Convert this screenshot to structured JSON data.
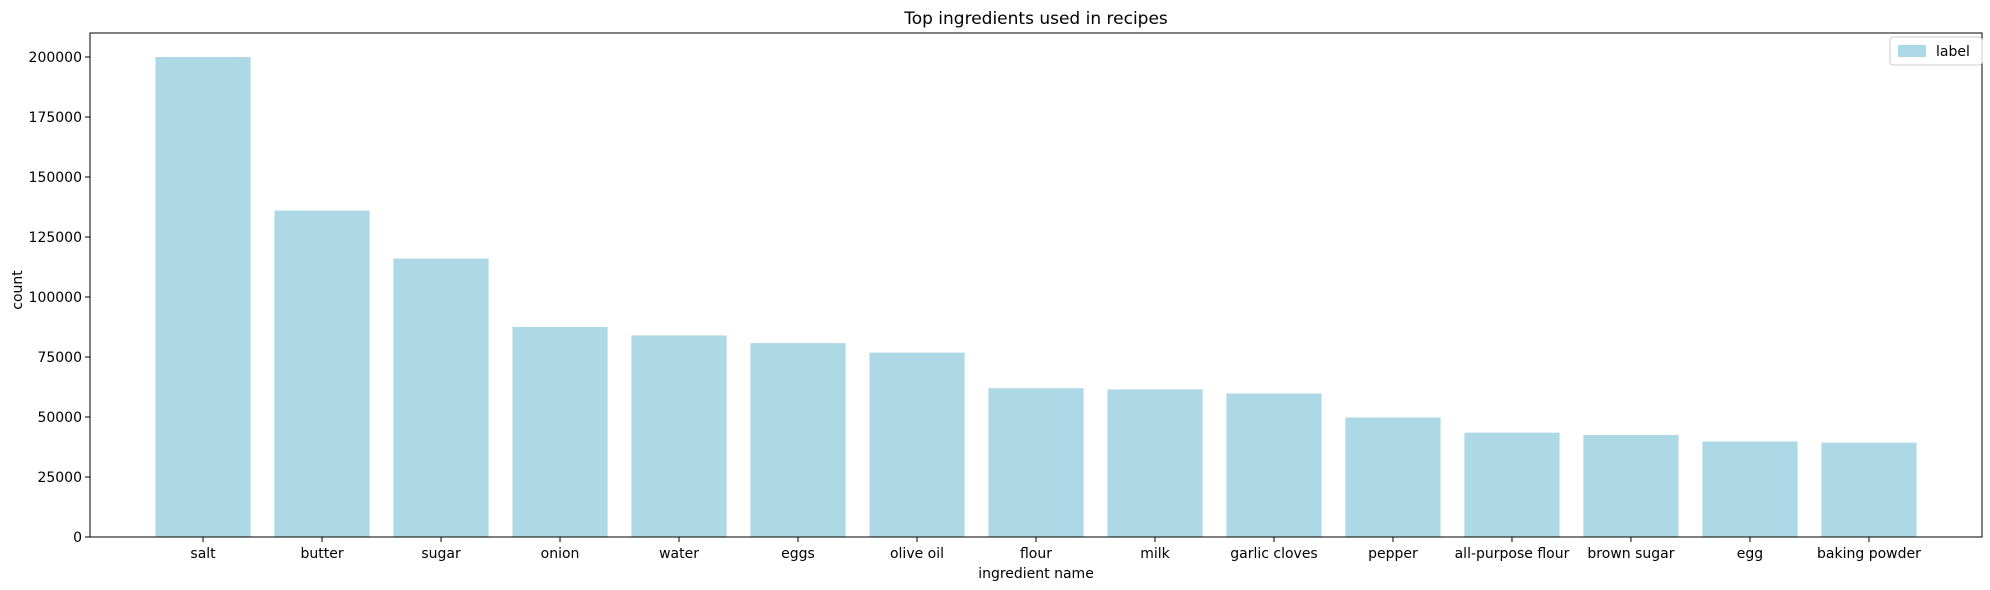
{
  "chart_data": {
    "type": "bar",
    "title": "Top ingredients used in recipes",
    "xlabel": "ingredient name",
    "ylabel": "count",
    "categories": [
      "salt",
      "butter",
      "sugar",
      "onion",
      "water",
      "eggs",
      "olive oil",
      "flour",
      "milk",
      "garlic cloves",
      "pepper",
      "all-purpose flour",
      "brown sugar",
      "egg",
      "baking powder"
    ],
    "series": [
      {
        "name": "label",
        "color": "#add8e6",
        "values": [
          200000,
          136000,
          116000,
          87500,
          84000,
          80800,
          76800,
          62000,
          61500,
          59800,
          49800,
          43500,
          42500,
          39800,
          39300
        ]
      }
    ],
    "yticks": [
      0,
      25000,
      50000,
      75000,
      100000,
      125000,
      150000,
      175000,
      200000
    ],
    "ylim": [
      0,
      210000
    ],
    "grid": false,
    "legend_position": "top-right"
  }
}
